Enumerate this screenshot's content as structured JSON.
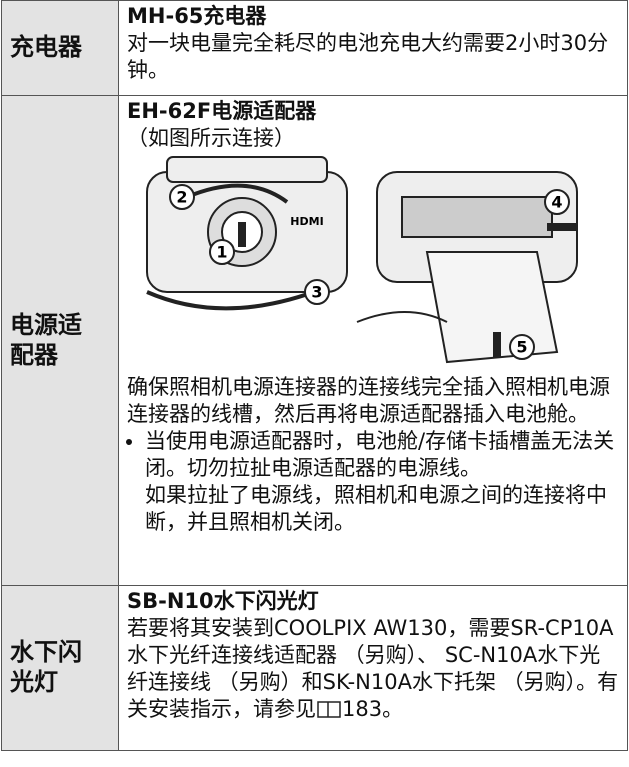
{
  "table": {
    "rows": [
      {
        "label": "充电器",
        "title": "MH-65充电器",
        "paragraphs": [
          "对一块电量完全耗尽的电池充电大约需要2小时30分钟。"
        ]
      },
      {
        "label": "电源适配器",
        "title": "EH-62F电源适配器",
        "note": "（如图所示连接）",
        "figure": {
          "callouts": [
            "1",
            "2",
            "3",
            "4",
            "5"
          ],
          "port_label": "HDMI"
        },
        "paragraphs": [
          "确保照相机电源连接器的连接线完全插入照相机电源连接器的线槽，然后再将电源适配器插入电池舱。"
        ],
        "bullet": "当使用电源适配器时，电池舱/存储卡插槽盖无法关闭。切勿拉扯电源适配器的电源线。",
        "bullet_continuation": "如果拉扯了电源线，照相机和电源之间的连接将中断，并且照相机关闭。"
      },
      {
        "label": "水下闪光灯",
        "title": "SB-N10水下闪光灯",
        "paragraphs": [
          "若要将其安装到COOLPIX AW130，需要SR-CP10A水下光纤连接线适配器 （另购）、 SC-N10A水下光纤连接线 （另购）和SK-N10A水下托架 （另购）。有关安装指示，请参见"
        ],
        "page_ref": "183。"
      }
    ]
  }
}
